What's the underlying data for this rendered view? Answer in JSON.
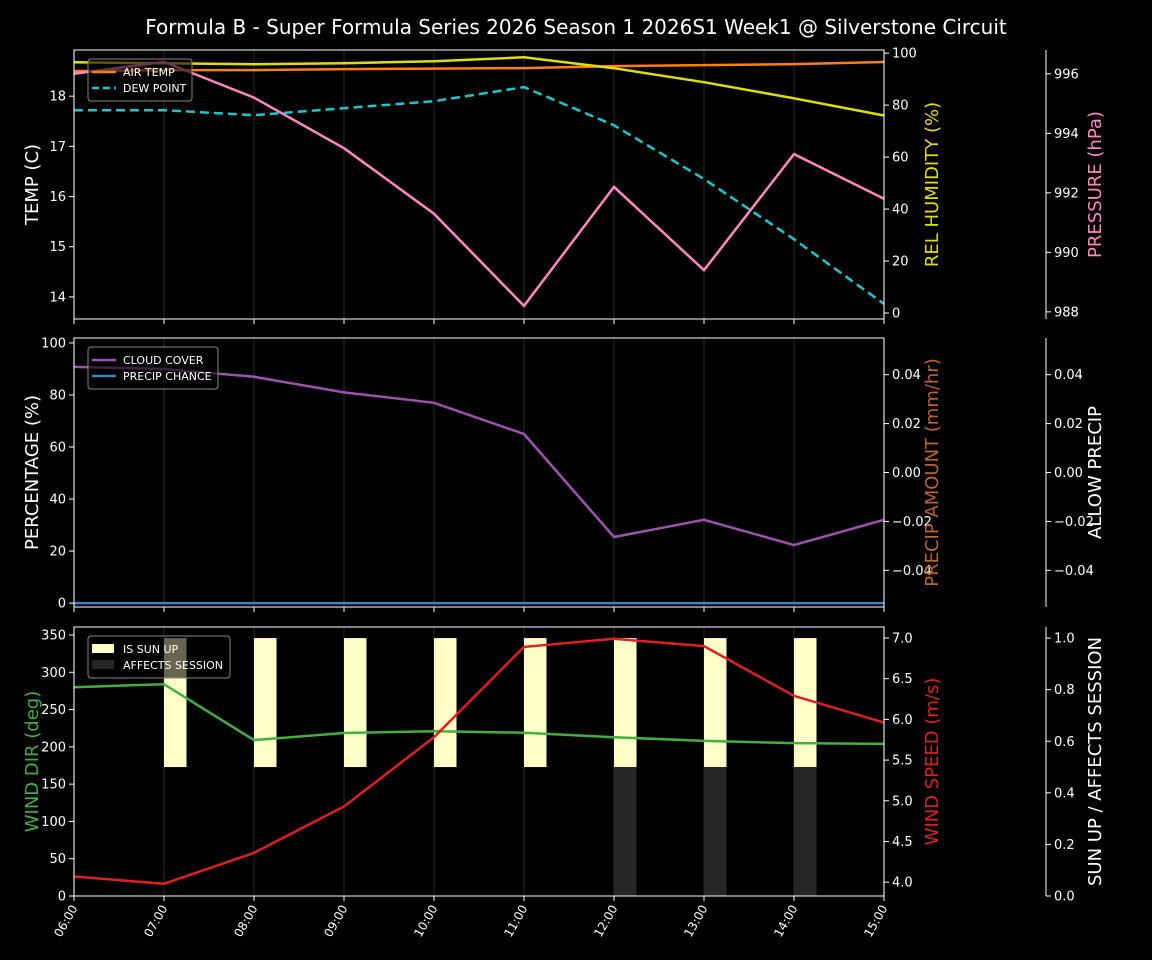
{
  "title": "Formula B - Super Formula Series 2026 Season 1 2026S1 Week1 @ Silverstone Circuit",
  "chart_data": [
    {
      "type": "line",
      "panel": "weather",
      "x": [
        "06:00",
        "07:00",
        "08:00",
        "09:00",
        "10:00",
        "11:00",
        "12:00",
        "13:00",
        "14:00",
        "15:00"
      ],
      "legend_position": "upper-left",
      "grid": "vertical",
      "axes": {
        "left": {
          "label": "TEMP (C)",
          "ylim": [
            13.56,
            18.92
          ],
          "ticks": [
            14,
            15,
            16,
            17,
            18
          ],
          "color": "#ffffff"
        },
        "right": {
          "label": "REL HUMIDITY (%)",
          "ylim": [
            -2.3,
            101.2
          ],
          "ticks": [
            0,
            20,
            40,
            60,
            80,
            100
          ],
          "color": "#e0e000"
        },
        "third": {
          "label": "PRESSURE (hPa)",
          "ylim": [
            987.76,
            996.8
          ],
          "ticks": [
            988,
            990,
            992,
            994,
            996
          ],
          "color": "#ff88c0"
        }
      },
      "series": [
        {
          "name": "AIR TEMP",
          "axis": "left",
          "color": "#ff7f0e",
          "dash": false,
          "legend": true,
          "values": [
            18.5,
            18.52,
            18.52,
            18.54,
            18.55,
            18.56,
            18.6,
            18.62,
            18.64,
            18.68
          ]
        },
        {
          "name": "DEW POINT",
          "axis": "left",
          "color": "#17c8d0",
          "dash": true,
          "legend": true,
          "values": [
            17.72,
            17.72,
            17.62,
            17.76,
            17.9,
            18.18,
            17.42,
            16.35,
            15.15,
            13.86
          ]
        },
        {
          "axis": "right",
          "color": "#e0e000",
          "dash": false,
          "legend": false,
          "values": [
            96.5,
            96.1,
            95.7,
            96.1,
            96.9,
            98.4,
            94.2,
            88.8,
            82.6,
            76.0
          ]
        },
        {
          "axis": "third",
          "color": "#ff88c0",
          "dash": false,
          "legend": false,
          "values": [
            996.0,
            996.4,
            995.2,
            993.5,
            991.3,
            988.2,
            992.2,
            989.4,
            993.3,
            991.8
          ]
        }
      ]
    },
    {
      "type": "line",
      "panel": "precip",
      "x": [
        "06:00",
        "07:00",
        "08:00",
        "09:00",
        "10:00",
        "11:00",
        "12:00",
        "13:00",
        "14:00",
        "15:00"
      ],
      "legend_position": "upper-left",
      "grid": "vertical",
      "axes": {
        "left": {
          "label": "PERCENTAGE (%)",
          "ylim": [
            -1.5,
            101.9
          ],
          "ticks": [
            0,
            20,
            40,
            60,
            80,
            100
          ],
          "color": "#ffffff"
        },
        "right": {
          "label": "PRECIP AMOUNT (mm/hr)",
          "ylim": [
            -0.055,
            0.055
          ],
          "ticks": [
            "-0.04",
            "-0.02",
            "0.00",
            "0.02",
            "0.04"
          ],
          "color": "#c0642a"
        },
        "third": {
          "label": "ALLOW PRECIP",
          "ylim": [
            -0.055,
            0.055
          ],
          "ticks": [
            "-0.04",
            "-0.02",
            "0.00",
            "0.02",
            "0.04"
          ],
          "color": "#ffffff"
        }
      },
      "series": [
        {
          "name": "CLOUD COVER",
          "axis": "left",
          "color": "#a050b0",
          "dash": false,
          "legend": true,
          "values": [
            90.8,
            90,
            87,
            81,
            77,
            65,
            25.4,
            32,
            22.3,
            32
          ]
        },
        {
          "name": "PRECIP CHANCE",
          "axis": "left",
          "color": "#4080c8",
          "dash": false,
          "legend": true,
          "values": [
            0,
            0,
            0,
            0,
            0,
            0,
            0,
            0,
            0,
            0
          ]
        }
      ]
    },
    {
      "type": "line",
      "panel": "wind",
      "x": [
        "06:00",
        "07:00",
        "08:00",
        "09:00",
        "10:00",
        "11:00",
        "12:00",
        "13:00",
        "14:00",
        "15:00"
      ],
      "legend_position": "upper-left",
      "grid": "vertical",
      "axes": {
        "left": {
          "label": "WIND DIR (deg)",
          "ylim": [
            0,
            360.7
          ],
          "ticks": [
            0,
            50,
            100,
            150,
            200,
            250,
            300,
            350
          ],
          "color": "#40b040"
        },
        "right": {
          "label": "WIND SPEED (m/s)",
          "ylim": [
            3.83,
            7.135
          ],
          "ticks": [
            "4.0",
            "4.5",
            "5.0",
            "5.5",
            "6.0",
            "6.5",
            "7.0"
          ],
          "color": "#e02020"
        },
        "third": {
          "label": "SUN UP / AFFECTS SESSION",
          "ylim": [
            0,
            1.043
          ],
          "ticks": [
            "0.0",
            "0.2",
            "0.4",
            "0.6",
            "0.8",
            "1.0"
          ],
          "color": "#ffffff"
        }
      },
      "bars": [
        {
          "name": "IS SUN UP",
          "color": "#ffffc8",
          "range": [
            0.5,
            1.0
          ],
          "values": [
            0,
            1,
            1,
            1,
            1,
            1,
            1,
            1,
            1,
            0
          ]
        },
        {
          "name": "AFFECTS SESSION",
          "color": "#262626",
          "range": [
            0,
            0.5
          ],
          "values": [
            0,
            0,
            0,
            0,
            0,
            0,
            1,
            1,
            1,
            0
          ]
        }
      ],
      "series": [
        {
          "axis": "left",
          "color": "#40b040",
          "dash": false,
          "legend": false,
          "values": [
            280,
            284,
            209,
            218.6,
            221,
            219,
            213,
            208,
            205,
            204
          ]
        },
        {
          "axis": "right",
          "color": "#e02020",
          "dash": false,
          "legend": false,
          "values": [
            4.07,
            3.98,
            4.36,
            4.93,
            5.78,
            6.89,
            6.99,
            6.9,
            6.29,
            5.96
          ]
        }
      ]
    }
  ]
}
